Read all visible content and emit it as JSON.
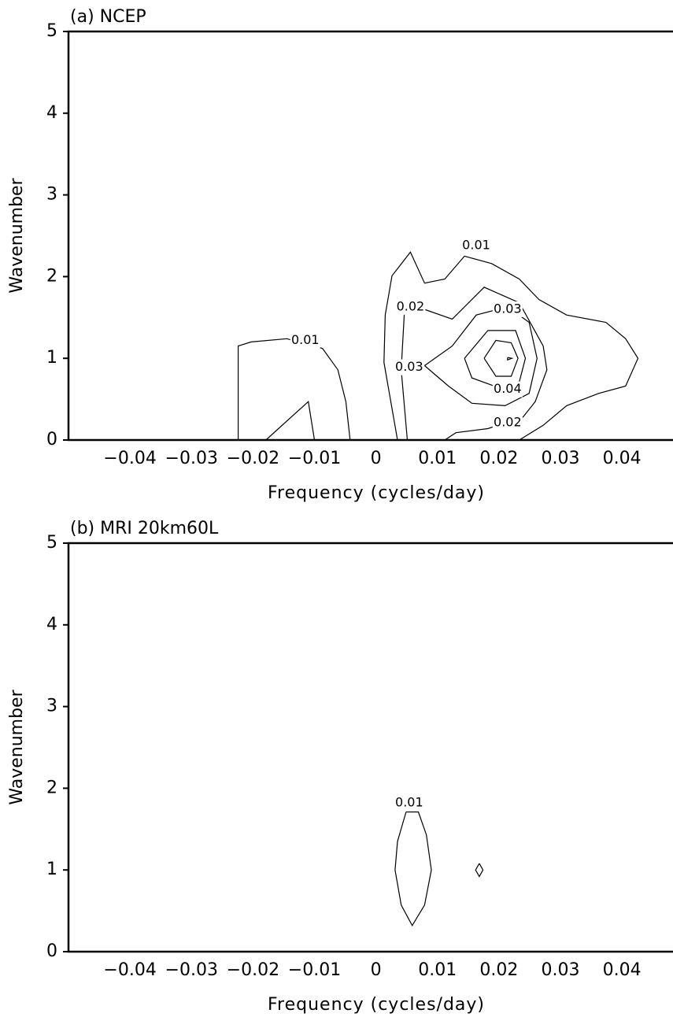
{
  "chart_data": [
    {
      "type": "contour",
      "title": "(a) NCEP",
      "xlabel": "Frequency (cycles/day)",
      "ylabel": "Wavenumber",
      "xlim": [
        -0.05,
        0.0483
      ],
      "ylim": [
        0,
        5
      ],
      "xticks": [
        {
          "value": -0.04,
          "label": "−0.04"
        },
        {
          "value": -0.03,
          "label": "−0.03"
        },
        {
          "value": -0.02,
          "label": "−0.02"
        },
        {
          "value": -0.01,
          "label": "−0.01"
        },
        0,
        0.01,
        0.02,
        0.03,
        0.04
      ],
      "yticks": [
        0,
        1,
        2,
        3,
        4,
        5
      ],
      "contours": [
        {
          "level": 0.01,
          "x": [
            -0.0224,
            -0.0224,
            -0.0203,
            -0.0145,
            -0.0087,
            -0.0062,
            -0.0049,
            -0.0042
          ],
          "y": [
            0,
            1.15,
            1.2,
            1.24,
            1.12,
            0.86,
            0.47,
            0
          ]
        },
        {
          "level": 0.01,
          "x": [
            -0.0179,
            -0.011,
            -0.01
          ],
          "y": [
            0,
            0.47,
            0
          ]
        },
        {
          "level": 0.01,
          "x": [
            0.0035,
            0.0013,
            0.0015,
            0.0026,
            0.0056,
            0.0079,
            0.0112,
            0.0144,
            0.0188,
            0.0233,
            0.0265,
            0.031,
            0.0374,
            0.0406,
            0.0426,
            0.0406,
            0.0362,
            0.031,
            0.0272,
            0.0233
          ],
          "y": [
            0,
            0.95,
            1.53,
            2.01,
            2.3,
            1.92,
            1.97,
            2.25,
            2.16,
            1.97,
            1.72,
            1.53,
            1.44,
            1.24,
            1.0,
            0.66,
            0.57,
            0.42,
            0.18,
            0
          ]
        },
        {
          "level": 0.02,
          "x": [
            0.0051,
            0.0041,
            0.0047,
            0.0086,
            0.0124,
            0.0176,
            0.0233,
            0.0272,
            0.0278,
            0.0259,
            0.0239,
            0.0182,
            0.013,
            0.0112
          ],
          "y": [
            0,
            0.86,
            1.68,
            1.58,
            1.48,
            1.87,
            1.68,
            1.15,
            0.86,
            0.47,
            0.28,
            0.14,
            0.09,
            0
          ]
        },
        {
          "level": 0.03,
          "x": [
            0.0079,
            0.0124,
            0.0163,
            0.0214,
            0.0249,
            0.0262,
            0.0249,
            0.021,
            0.0156,
            0.0118,
            0.0079
          ],
          "y": [
            0.91,
            1.15,
            1.53,
            1.63,
            1.44,
            1.0,
            0.57,
            0.42,
            0.45,
            0.66,
            0.91
          ]
        },
        {
          "level": 0.04,
          "x": [
            0.0144,
            0.0182,
            0.0227,
            0.0243,
            0.0233,
            0.0207,
            0.0156,
            0.0144
          ],
          "y": [
            1.0,
            1.34,
            1.34,
            1.0,
            0.71,
            0.62,
            0.76,
            1.0
          ]
        },
        {
          "x": [
            0.0176,
            0.0195,
            0.022,
            0.0231,
            0.022,
            0.0195,
            0.0176
          ],
          "y": [
            1.0,
            1.22,
            1.19,
            1.0,
            0.78,
            0.78,
            1.0
          ]
        },
        {
          "x": [
            0.0214,
            0.0221,
            0.0214,
            0.0214
          ],
          "y": [
            1.01,
            1.0,
            0.98,
            1.01
          ]
        }
      ],
      "labels": [
        {
          "level": 0.01,
          "x": -0.0115,
          "y": 1.22
        },
        {
          "level": 0.01,
          "x": 0.0163,
          "y": 2.38
        },
        {
          "level": 0.02,
          "x": 0.0056,
          "y": 1.63
        },
        {
          "level": 0.03,
          "x": 0.0214,
          "y": 1.6
        },
        {
          "level": 0.03,
          "x": 0.0054,
          "y": 0.89
        },
        {
          "level": 0.04,
          "x": 0.0214,
          "y": 0.62
        },
        {
          "level": 0.02,
          "x": 0.0214,
          "y": 0.21
        }
      ]
    },
    {
      "type": "contour",
      "title": "(b) MRI 20km60L",
      "xlabel": "Frequency (cycles/day)",
      "ylabel": "Wavenumber",
      "xlim": [
        -0.05,
        0.0483
      ],
      "ylim": [
        0,
        5
      ],
      "xticks": [
        {
          "value": -0.04,
          "label": "−0.04"
        },
        {
          "value": -0.03,
          "label": "−0.03"
        },
        {
          "value": -0.02,
          "label": "−0.02"
        },
        {
          "value": -0.01,
          "label": "−0.01"
        },
        0,
        0.01,
        0.02,
        0.03,
        0.04
      ],
      "yticks": [
        0,
        1,
        2,
        3,
        4,
        5
      ],
      "contours": [
        {
          "level": 0.01,
          "x": [
            0.0049,
            0.0035,
            0.0031,
            0.0041,
            0.0059,
            0.0079,
            0.009,
            0.0082,
            0.0069,
            0.0049
          ],
          "y": [
            1.71,
            1.35,
            1.0,
            0.57,
            0.32,
            0.57,
            1.0,
            1.43,
            1.71,
            1.71
          ]
        },
        {
          "x": [
            0.0168,
            0.0174,
            0.0168,
            0.0162,
            0.0168
          ],
          "y": [
            1.08,
            1.0,
            0.92,
            1.0,
            1.08
          ]
        }
      ],
      "labels": [
        {
          "level": 0.01,
          "x": 0.0054,
          "y": 1.82
        }
      ]
    }
  ]
}
